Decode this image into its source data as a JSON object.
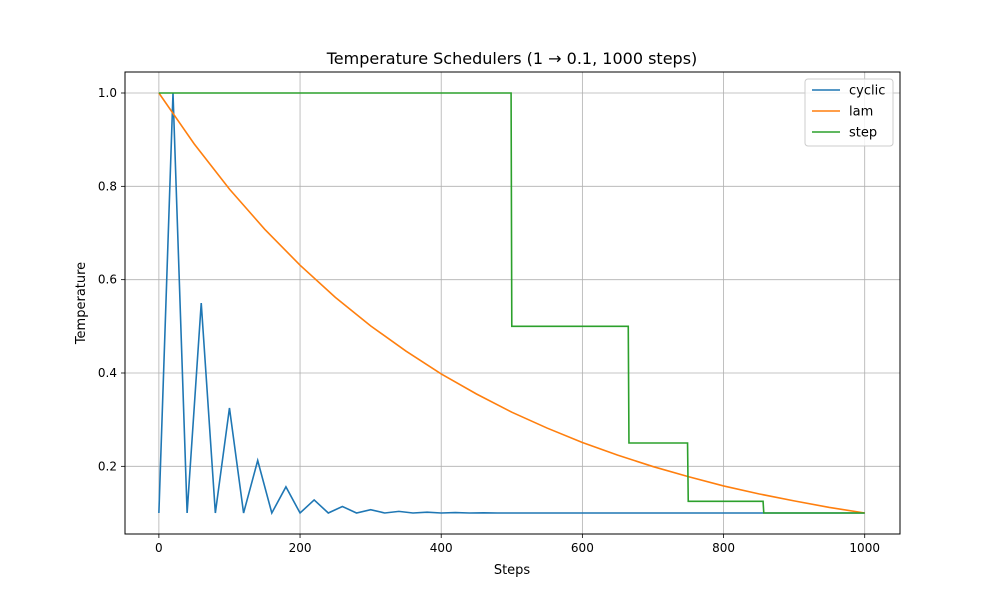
{
  "chart_data": {
    "type": "line",
    "title": "Temperature Schedulers (1 → 0.1, 1000 steps)",
    "xlabel": "Steps",
    "ylabel": "Temperature",
    "xlim": [
      -48,
      1050
    ],
    "ylim": [
      0.055,
      1.045
    ],
    "xticks": [
      0,
      200,
      400,
      600,
      800,
      1000
    ],
    "yticks": [
      0.2,
      0.4,
      0.6,
      0.8,
      1.0
    ],
    "xtick_labels": [
      "0",
      "200",
      "400",
      "600",
      "800",
      "1000"
    ],
    "ytick_labels": [
      "0.2",
      "0.4",
      "0.6",
      "0.8",
      "1.0"
    ],
    "grid": true,
    "legend_position": "top-right",
    "series": [
      {
        "name": "cyclic",
        "color": "#1f77b4",
        "x": [
          0,
          20,
          40,
          60,
          80,
          100,
          120,
          140,
          160,
          180,
          200,
          220,
          240,
          260,
          280,
          300,
          320,
          340,
          360,
          380,
          400,
          420,
          440,
          460,
          480,
          500,
          520,
          540,
          560,
          580,
          600,
          620,
          640,
          660,
          680,
          700,
          720,
          740,
          760,
          780,
          800,
          820,
          840,
          857,
          860,
          880,
          900,
          920,
          940,
          960,
          980,
          1000
        ],
        "y": [
          0.1,
          1.0,
          0.1,
          0.55,
          0.1,
          0.325,
          0.1,
          0.2125,
          0.1,
          0.156,
          0.1,
          0.128,
          0.1,
          0.114,
          0.1,
          0.107,
          0.1,
          0.1035,
          0.1,
          0.1018,
          0.1,
          0.1009,
          0.1,
          0.1004,
          0.1,
          0.1,
          0.1,
          0.1,
          0.1,
          0.1,
          0.1,
          0.1,
          0.1,
          0.1,
          0.1,
          0.1,
          0.1,
          0.1,
          0.1,
          0.1,
          0.1,
          0.1,
          0.1,
          0.1,
          0.1,
          0.1,
          0.1,
          0.1,
          0.1,
          0.1,
          0.1,
          0.1
        ]
      },
      {
        "name": "lam",
        "color": "#ff7f0e",
        "x": [
          0,
          50,
          100,
          150,
          200,
          250,
          300,
          350,
          400,
          450,
          500,
          550,
          600,
          650,
          700,
          750,
          800,
          850,
          900,
          950,
          1000
        ],
        "y": [
          1.0,
          0.891,
          0.794,
          0.708,
          0.631,
          0.562,
          0.501,
          0.447,
          0.398,
          0.355,
          0.316,
          0.282,
          0.251,
          0.224,
          0.1995,
          0.178,
          0.158,
          0.141,
          0.126,
          0.112,
          0.1
        ]
      },
      {
        "name": "step",
        "color": "#2ca02c",
        "x": [
          0,
          499,
          500,
          665,
          666,
          749,
          750,
          856,
          857,
          1000
        ],
        "y": [
          1.0,
          1.0,
          0.5,
          0.5,
          0.25,
          0.25,
          0.125,
          0.125,
          0.1,
          0.1
        ]
      }
    ]
  }
}
